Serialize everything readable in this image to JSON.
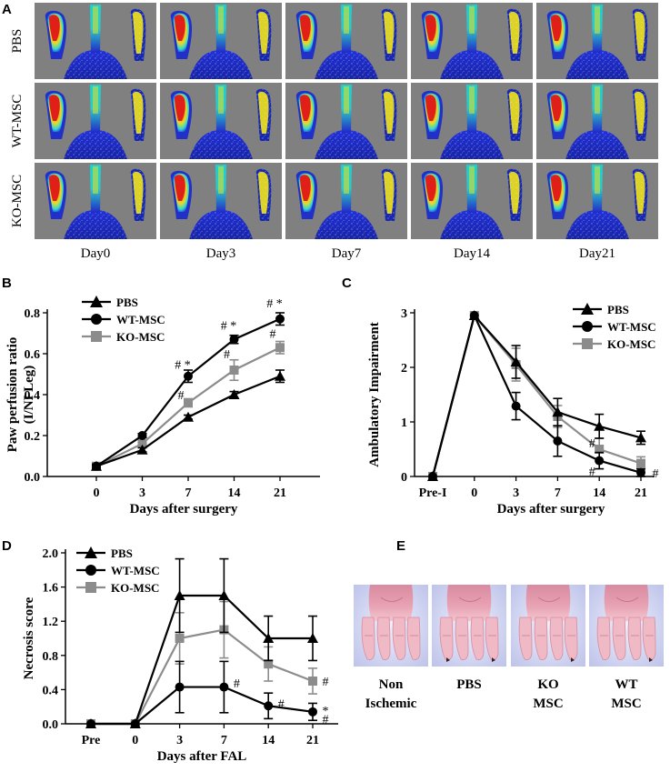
{
  "panels": {
    "A": {
      "label": "A",
      "rows": [
        "PBS",
        "WT-MSC",
        "KO-MSC"
      ],
      "columns": [
        "Day0",
        "Day3",
        "Day7",
        "Day14",
        "Day21"
      ],
      "colors": {
        "background": "#808080",
        "low": "#1c2bd0",
        "mid": "#1fd0d8",
        "midhigh": "#e8e020",
        "high": "#e02018"
      },
      "perfusion": [
        [
          0.92,
          0.75,
          0.15
        ],
        [
          0.9,
          0.75,
          0.45
        ],
        [
          0.92,
          0.72,
          0.6
        ],
        [
          0.92,
          0.75,
          0.7
        ],
        [
          0.95,
          0.78,
          0.8
        ],
        [
          0.92,
          0.75,
          0.15
        ],
        [
          0.9,
          0.75,
          0.45
        ],
        [
          0.9,
          0.72,
          0.6
        ],
        [
          0.92,
          0.72,
          0.85
        ],
        [
          0.95,
          0.75,
          0.9
        ],
        [
          0.92,
          0.75,
          0.25
        ],
        [
          0.92,
          0.75,
          0.4
        ],
        [
          0.9,
          0.75,
          0.55
        ],
        [
          0.92,
          0.75,
          0.7
        ],
        [
          0.95,
          0.75,
          0.8
        ]
      ]
    },
    "E": {
      "label": "E",
      "captions": [
        [
          "Non",
          "Ischemic"
        ],
        [
          "PBS",
          ""
        ],
        [
          "KO",
          "MSC"
        ],
        [
          "WT",
          "MSC"
        ]
      ]
    }
  },
  "chart_data": [
    {
      "id": "B",
      "label": "B",
      "type": "line",
      "x": [
        0,
        3,
        7,
        14,
        21
      ],
      "categories": [
        "0",
        "3",
        "7",
        "14",
        "21"
      ],
      "xlabel": "Days after surgery",
      "ylabel": [
        "Paw perfusion ratio",
        "(I/NI Leg)"
      ],
      "ylim": [
        0,
        0.8
      ],
      "yticks": [
        0,
        0.2,
        0.4,
        0.6,
        0.8
      ],
      "ytick_labels": [
        "0.0",
        "0.2",
        "0.4",
        "0.6",
        "0.8"
      ],
      "series": [
        {
          "name": "PBS",
          "marker": "triangle",
          "color": "#000000",
          "values": [
            0.05,
            0.13,
            0.29,
            0.4,
            0.49
          ],
          "errors": [
            0.01,
            0.01,
            0.01,
            0.015,
            0.03
          ]
        },
        {
          "name": "WT-MSC",
          "marker": "circle",
          "color": "#000000",
          "values": [
            0.05,
            0.2,
            0.49,
            0.67,
            0.77
          ],
          "errors": [
            0.01,
            0.01,
            0.03,
            0.02,
            0.03
          ]
        },
        {
          "name": "KO-MSC",
          "marker": "square",
          "color": "#8c8c8c",
          "values": [
            0.05,
            0.16,
            0.36,
            0.52,
            0.63
          ],
          "errors": [
            0.01,
            0.01,
            0.02,
            0.05,
            0.03
          ]
        }
      ],
      "annotations": [
        {
          "x": 7,
          "y": 0.55,
          "text": "# *"
        },
        {
          "x": 7,
          "y": 0.4,
          "text": "#"
        },
        {
          "x": 14,
          "y": 0.74,
          "text": "# *"
        },
        {
          "x": 14,
          "y": 0.6,
          "text": "#"
        },
        {
          "x": 21,
          "y": 0.85,
          "text": "# *"
        },
        {
          "x": 21,
          "y": 0.7,
          "text": "#"
        }
      ]
    },
    {
      "id": "C",
      "label": "C",
      "type": "line",
      "x": [
        "Pre-I",
        0,
        3,
        7,
        14,
        21
      ],
      "categories": [
        "Pre-I",
        "0",
        "3",
        "7",
        "14",
        "21"
      ],
      "xlabel": "Days after surgery",
      "ylabel": [
        "Ambulatory Impairment"
      ],
      "ylim": [
        0,
        3
      ],
      "yticks": [
        0,
        1,
        2,
        3
      ],
      "ytick_labels": [
        "0",
        "1",
        "2",
        "3"
      ],
      "series": [
        {
          "name": "PBS",
          "marker": "triangle",
          "color": "#000000",
          "values": [
            0,
            2.95,
            2.1,
            1.18,
            0.92,
            0.71
          ],
          "errors": [
            0,
            0,
            0.3,
            0.25,
            0.22,
            0.12
          ]
        },
        {
          "name": "WT-MSC",
          "marker": "circle",
          "color": "#000000",
          "values": [
            0,
            2.95,
            1.29,
            0.65,
            0.29,
            0.07
          ],
          "errors": [
            0,
            0,
            0.25,
            0.28,
            0.15,
            0.07
          ]
        },
        {
          "name": "KO-MSC",
          "marker": "square",
          "color": "#8c8c8c",
          "values": [
            0,
            2.95,
            2.05,
            1.1,
            0.5,
            0.24
          ],
          "errors": [
            0,
            0,
            0.3,
            0.2,
            0.2,
            0.12
          ]
        }
      ],
      "annotations": [
        {
          "x": 14,
          "y": 0.62,
          "text": "#"
        },
        {
          "x": 14,
          "y": 0.1,
          "text": "#"
        },
        {
          "x": 21,
          "y": 0.07,
          "text": "#"
        }
      ]
    },
    {
      "id": "D",
      "label": "D",
      "type": "line",
      "x": [
        "Pre",
        0,
        3,
        7,
        14,
        21
      ],
      "categories": [
        "Pre",
        "0",
        "3",
        "7",
        "14",
        "21"
      ],
      "xlabel": "Days after FAL",
      "ylabel": [
        "Necrosis score"
      ],
      "ylim": [
        0,
        2
      ],
      "yticks": [
        0,
        0.4,
        0.8,
        1.2,
        1.6,
        2.0
      ],
      "ytick_labels": [
        "0.0",
        "0.4",
        "0.8",
        "1.2",
        "1.6",
        "2.0"
      ],
      "series": [
        {
          "name": "PBS",
          "marker": "triangle",
          "color": "#000000",
          "values": [
            0,
            0,
            1.5,
            1.5,
            1.0,
            1.0
          ],
          "errors": [
            0,
            0,
            0.43,
            0.43,
            0.26,
            0.26
          ]
        },
        {
          "name": "WT-MSC",
          "marker": "circle",
          "color": "#000000",
          "values": [
            0,
            0,
            0.43,
            0.43,
            0.21,
            0.14
          ],
          "errors": [
            0,
            0,
            0.3,
            0.3,
            0.15,
            0.1
          ]
        },
        {
          "name": "KO-MSC",
          "marker": "square",
          "color": "#8c8c8c",
          "values": [
            0,
            0,
            1.0,
            1.1,
            0.7,
            0.5
          ],
          "errors": [
            0,
            0,
            0.3,
            0.33,
            0.2,
            0.15
          ]
        }
      ],
      "annotations": [
        {
          "x": 7,
          "y": 0.48,
          "text": "#"
        },
        {
          "x": 14,
          "y": 0.24,
          "text": "#"
        },
        {
          "x": 21,
          "y": 0.5,
          "text": "#"
        },
        {
          "x": 21,
          "y": 0.16,
          "text": "*"
        },
        {
          "x": 21,
          "y": 0.06,
          "text": "#"
        }
      ]
    }
  ]
}
